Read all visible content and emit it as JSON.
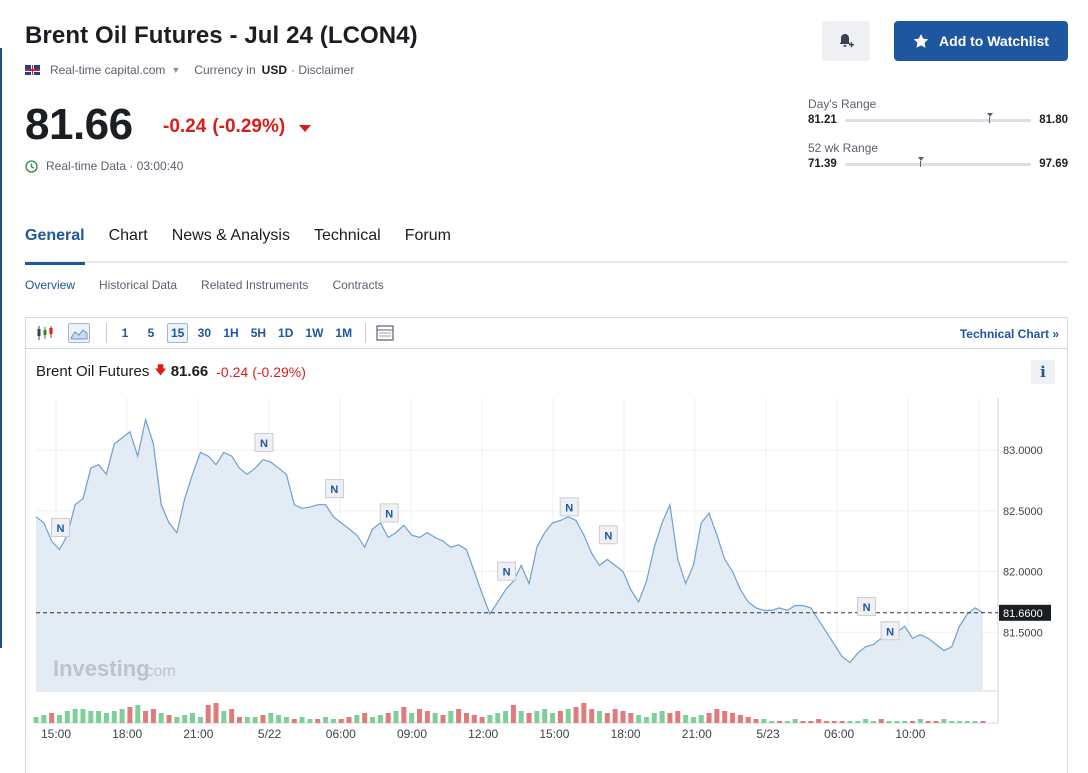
{
  "header": {
    "title": "Brent Oil Futures - Jul 24 (LCON4)",
    "source": "Real-time capital.com",
    "currency_label": "Currency in",
    "currency": "USD",
    "disclaimer": "· Disclaimer",
    "watchlist_label": "Add to Watchlist"
  },
  "quote": {
    "price": "81.66",
    "change": "-0.24",
    "change_pct": "(-0.29%)",
    "realtime": "Real-time Data · 03:00:40"
  },
  "ranges": {
    "day": {
      "label": "Day's Range",
      "low": "81.21",
      "high": "81.80",
      "low_value": 81.21,
      "high_value": 81.8,
      "current": 81.66
    },
    "week52": {
      "label": "52 wk Range",
      "low": "71.39",
      "high": "97.69",
      "low_value": 71.39,
      "high_value": 97.69,
      "current": 81.66
    }
  },
  "tabs": [
    "General",
    "Chart",
    "News & Analysis",
    "Technical",
    "Forum"
  ],
  "subtabs": [
    "Overview",
    "Historical Data",
    "Related Instruments",
    "Contracts"
  ],
  "toolbar": {
    "intervals": [
      "1",
      "5",
      "15",
      "30",
      "1H",
      "5H",
      "1D",
      "1W",
      "1M"
    ],
    "selected_interval": "15",
    "tech_link": "Technical Chart »"
  },
  "legend": {
    "name": "Brent Oil Futures",
    "value": "81.66",
    "change": "-0.24",
    "change_pct": "(-0.29%)"
  },
  "chart_data": {
    "type": "area",
    "watermark_brand": "Investing",
    "watermark_suffix": ".com",
    "y_ticks": [
      "83.0000",
      "82.5000",
      "82.0000",
      "81.5000"
    ],
    "y_tick_values": [
      83.0,
      82.5,
      82.0,
      81.5
    ],
    "last_price_label": "81.6600",
    "last_price": 81.66,
    "x_ticks": [
      "15:00",
      "18:00",
      "21:00",
      "5/22",
      "06:00",
      "09:00",
      "12:00",
      "15:00",
      "18:00",
      "21:00",
      "5/23",
      "06:00",
      "10:00"
    ],
    "news_marker_label": "N",
    "series": [
      {
        "values": [
          82.45,
          82.4,
          82.25,
          82.18,
          82.3,
          82.55,
          82.6,
          82.85,
          82.88,
          82.8,
          83.05,
          83.1,
          83.15,
          82.95,
          83.25,
          83.05,
          82.55,
          82.4,
          82.32,
          82.6,
          82.8,
          82.98,
          82.95,
          82.88,
          82.98,
          82.95,
          82.85,
          82.8,
          82.85,
          82.92,
          82.9,
          82.85,
          82.8,
          82.55,
          82.52,
          82.53,
          82.55,
          82.55,
          82.45,
          82.4,
          82.35,
          82.3,
          82.2,
          82.35,
          82.4,
          82.28,
          82.32,
          82.38,
          82.3,
          82.28,
          82.32,
          82.28,
          82.25,
          82.2,
          82.22,
          82.18,
          82.0,
          81.82,
          81.65,
          81.75,
          81.85,
          81.92,
          82.05,
          81.9,
          82.2,
          82.32,
          82.4,
          82.42,
          82.45,
          82.42,
          82.3,
          82.15,
          82.05,
          82.1,
          82.05,
          82.0,
          81.85,
          81.75,
          81.92,
          82.2,
          82.4,
          82.55,
          82.1,
          81.9,
          82.05,
          82.4,
          82.48,
          82.3,
          82.1,
          82.0,
          81.85,
          81.75,
          81.7,
          81.68,
          81.68,
          81.7,
          81.68,
          81.72,
          81.72,
          81.7,
          81.6,
          81.5,
          81.4,
          81.3,
          81.25,
          81.33,
          81.38,
          81.4,
          81.45,
          81.45,
          81.5,
          81.55,
          81.45,
          81.48,
          81.45,
          81.4,
          81.35,
          81.38,
          81.55,
          81.65,
          81.7,
          81.66
        ]
      }
    ],
    "news_markers": [
      {
        "index": 3,
        "price": 82.28
      },
      {
        "index": 29,
        "price": 82.98
      },
      {
        "index": 38,
        "price": 82.6
      },
      {
        "index": 45,
        "price": 82.4
      },
      {
        "index": 60,
        "price": 81.92
      },
      {
        "index": 68,
        "price": 82.45
      },
      {
        "index": 73,
        "price": 82.22
      },
      {
        "index": 106,
        "price": 81.63
      },
      {
        "index": 109,
        "price": 81.43
      }
    ],
    "volume": [
      3,
      4,
      5,
      4,
      6,
      7,
      7,
      6,
      6,
      5,
      6,
      7,
      8,
      9,
      6,
      7,
      5,
      4,
      3,
      4,
      5,
      3,
      9,
      10,
      6,
      7,
      3,
      3,
      3,
      4,
      5,
      4,
      3,
      2,
      3,
      2,
      2,
      3,
      2,
      2,
      3,
      4,
      5,
      3,
      4,
      5,
      6,
      8,
      5,
      7,
      6,
      5,
      4,
      6,
      7,
      5,
      4,
      3,
      4,
      5,
      6,
      9,
      6,
      5,
      6,
      7,
      5,
      6,
      7,
      8,
      10,
      7,
      6,
      5,
      7,
      6,
      5,
      4,
      3,
      5,
      6,
      5,
      6,
      4,
      3,
      4,
      5,
      7,
      6,
      5,
      4,
      3,
      2,
      2,
      1,
      1,
      1,
      2,
      1,
      1,
      2,
      1,
      1,
      1,
      1,
      1,
      2,
      1,
      2,
      1,
      1,
      1,
      1,
      2,
      1,
      1,
      2,
      1,
      1,
      1,
      1,
      1
    ],
    "volume_up_flags": [
      1,
      1,
      0,
      1,
      1,
      1,
      1,
      1,
      1,
      1,
      1,
      1,
      0,
      1,
      0,
      0,
      1,
      0,
      1,
      1,
      1,
      1,
      0,
      0,
      1,
      0,
      0,
      1,
      1,
      0,
      1,
      1,
      1,
      0,
      1,
      1,
      0,
      1,
      1,
      0,
      0,
      1,
      0,
      1,
      1,
      0,
      1,
      0,
      1,
      0,
      0,
      1,
      0,
      1,
      0,
      0,
      0,
      0,
      1,
      1,
      1,
      0,
      1,
      0,
      1,
      1,
      1,
      0,
      1,
      0,
      0,
      0,
      1,
      0,
      0,
      0,
      0,
      1,
      1,
      1,
      1,
      0,
      0,
      1,
      1,
      1,
      0,
      0,
      0,
      0,
      0,
      0,
      0,
      1,
      1,
      0,
      1,
      1,
      0,
      0,
      0,
      0,
      0,
      0,
      1,
      1,
      1,
      1,
      0,
      1,
      1,
      1,
      0,
      1,
      0,
      0,
      1,
      1,
      1,
      1,
      1,
      0
    ]
  }
}
